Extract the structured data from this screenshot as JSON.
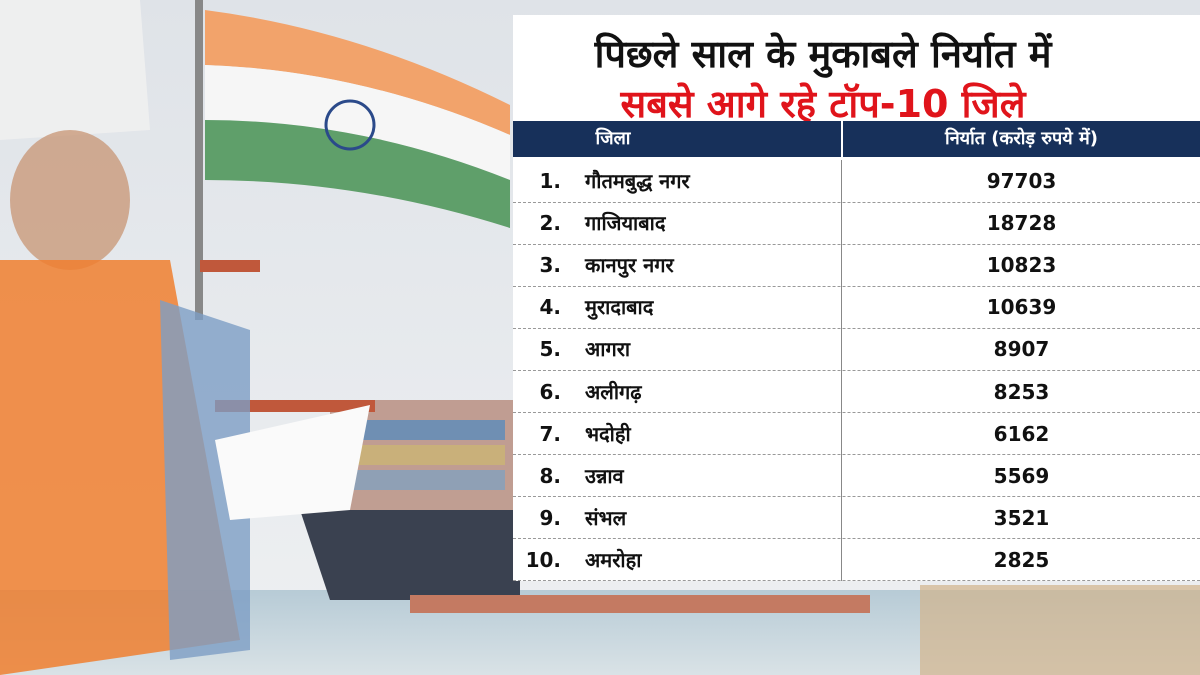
{
  "header": {
    "title_line1": "पिछले साल के मुकाबले निर्यात में",
    "title_line2": "सबसे आगे रहे टॉप-10 जिले"
  },
  "table": {
    "columns": [
      "जिला",
      "निर्यात (करोड़ रुपये में)"
    ],
    "rows": [
      [
        "1.",
        "गौतमबुद्ध नगर",
        97703
      ],
      [
        "2.",
        "गाजियाबाद",
        18728
      ],
      [
        "3.",
        "कानपुर नगर",
        10823
      ],
      [
        "4.",
        "मुरादाबाद",
        10639
      ],
      [
        "5.",
        "आगरा",
        8907
      ],
      [
        "6.",
        "अलीगढ़",
        8253
      ],
      [
        "7.",
        "भदोही",
        6162
      ],
      [
        "8.",
        "उन्नाव",
        5569
      ],
      [
        "9.",
        "संभल",
        3521
      ],
      [
        "10.",
        "अमरोहा",
        2825
      ]
    ]
  }
}
